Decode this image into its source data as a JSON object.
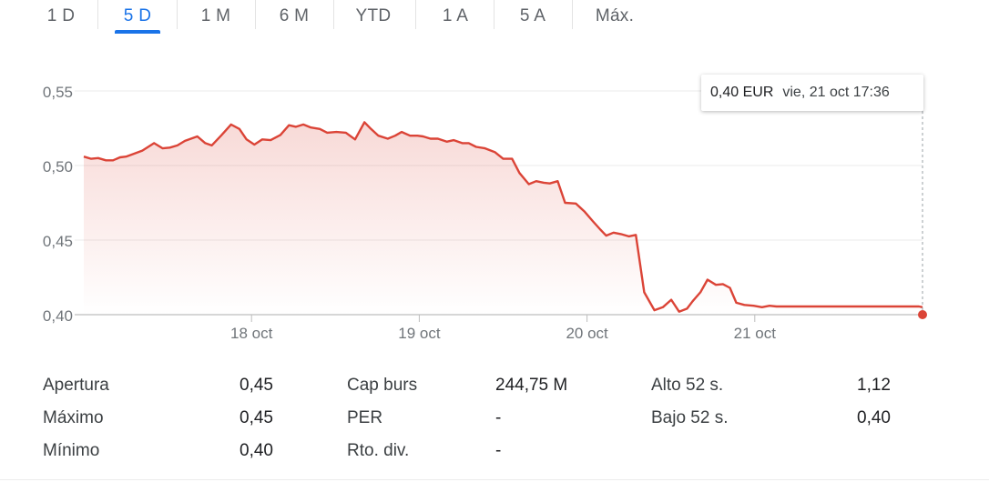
{
  "tabs": [
    {
      "label": "1 D",
      "active": false
    },
    {
      "label": "5 D",
      "active": true
    },
    {
      "label": "1 M",
      "active": false
    },
    {
      "label": "6 M",
      "active": false
    },
    {
      "label": "YTD",
      "active": false
    },
    {
      "label": "1 A",
      "active": false
    },
    {
      "label": "5 A",
      "active": false
    },
    {
      "label": "Máx.",
      "active": false
    }
  ],
  "tooltip": {
    "price": "0,40 EUR",
    "datetime": "vie, 21 oct 17:36"
  },
  "colors": {
    "line": "#db4437",
    "accent": "#1a73e8",
    "grid": "#ebebeb"
  },
  "chart_data": {
    "type": "area",
    "y_ticks": [
      "0,55",
      "0,50",
      "0,45",
      "0,40"
    ],
    "y_tick_values": [
      0.55,
      0.5,
      0.45,
      0.4
    ],
    "ylim": [
      0.4,
      0.55
    ],
    "xlim": [
      0,
      5
    ],
    "x_ticks": [
      {
        "x": 1,
        "label": "18 oct"
      },
      {
        "x": 2,
        "label": "19 oct"
      },
      {
        "x": 3,
        "label": "20 oct"
      },
      {
        "x": 4,
        "label": "21 oct"
      }
    ],
    "x_unit": "trading days since 17 oct open",
    "grid": true,
    "last_value": 0.4,
    "x": [
      0.0,
      0.044,
      0.086,
      0.132,
      0.174,
      0.216,
      0.252,
      0.302,
      0.349,
      0.419,
      0.47,
      0.513,
      0.558,
      0.603,
      0.677,
      0.724,
      0.763,
      0.818,
      0.878,
      0.928,
      0.97,
      1.017,
      1.064,
      1.114,
      1.172,
      1.223,
      1.265,
      1.309,
      1.354,
      1.407,
      1.451,
      1.506,
      1.562,
      1.617,
      1.673,
      1.712,
      1.756,
      1.812,
      1.856,
      1.895,
      1.945,
      1.989,
      2.022,
      2.067,
      2.111,
      2.164,
      2.206,
      2.256,
      2.295,
      2.339,
      2.392,
      2.45,
      2.5,
      2.553,
      2.597,
      2.653,
      2.697,
      2.742,
      2.778,
      2.825,
      2.869,
      2.933,
      2.986,
      3.036,
      3.08,
      3.114,
      3.158,
      3.202,
      3.249,
      3.291,
      3.341,
      3.402,
      3.452,
      3.502,
      3.549,
      3.596,
      3.63,
      3.676,
      3.718,
      3.768,
      3.81,
      3.852,
      3.89,
      3.938,
      3.993,
      4.043,
      4.088,
      4.129,
      4.18,
      4.235,
      4.279,
      4.324,
      4.362,
      4.407,
      4.457,
      4.496,
      4.546,
      4.59,
      4.632,
      4.676,
      4.72,
      4.759,
      4.798,
      4.843,
      4.893,
      4.937,
      4.979,
      5.0
    ],
    "values": [
      0.506,
      0.5045,
      0.505,
      0.5035,
      0.5035,
      0.5055,
      0.506,
      0.508,
      0.51,
      0.515,
      0.5115,
      0.512,
      0.5135,
      0.5165,
      0.5195,
      0.515,
      0.5135,
      0.52,
      0.5275,
      0.5245,
      0.5175,
      0.514,
      0.5175,
      0.517,
      0.5205,
      0.527,
      0.526,
      0.5275,
      0.5255,
      0.5245,
      0.522,
      0.5225,
      0.522,
      0.5175,
      0.529,
      0.5245,
      0.52,
      0.518,
      0.52,
      0.5225,
      0.52,
      0.52,
      0.5195,
      0.518,
      0.518,
      0.516,
      0.517,
      0.515,
      0.515,
      0.5125,
      0.5115,
      0.509,
      0.5045,
      0.5045,
      0.495,
      0.4875,
      0.4895,
      0.4885,
      0.488,
      0.4895,
      0.475,
      0.4745,
      0.469,
      0.4625,
      0.457,
      0.453,
      0.455,
      0.454,
      0.4525,
      0.4535,
      0.415,
      0.403,
      0.405,
      0.41,
      0.402,
      0.404,
      0.409,
      0.415,
      0.4235,
      0.42,
      0.4205,
      0.418,
      0.408,
      0.4065,
      0.406,
      0.405,
      0.406,
      0.4055,
      0.4055,
      0.4055,
      0.4055,
      0.4055,
      0.4055,
      0.4055,
      0.4055,
      0.4055,
      0.4055,
      0.4055,
      0.4055,
      0.4055,
      0.4055,
      0.4055,
      0.4055,
      0.4055,
      0.4055,
      0.4055,
      0.4055,
      0.405
    ]
  },
  "stats": {
    "col1": [
      {
        "label": "Apertura",
        "value": "0,45"
      },
      {
        "label": "Máximo",
        "value": "0,45"
      },
      {
        "label": "Mínimo",
        "value": "0,40"
      }
    ],
    "col2": [
      {
        "label": "Cap burs",
        "value": "244,75 M"
      },
      {
        "label": "PER",
        "value": "-"
      },
      {
        "label": "Rto. div.",
        "value": "-"
      }
    ],
    "col3": [
      {
        "label": "Alto 52 s.",
        "value": "1,12"
      },
      {
        "label": "Bajo 52 s.",
        "value": "0,40"
      }
    ]
  }
}
